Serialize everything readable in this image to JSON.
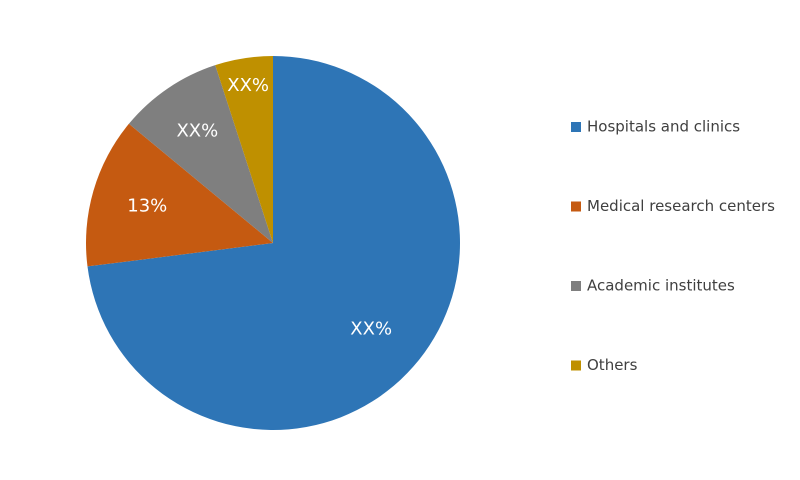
{
  "chart_data": {
    "type": "pie",
    "categories": [
      "Hospitals and clinics",
      "Medical research centers",
      "Academic institutes",
      "Others"
    ],
    "values": [
      73,
      13,
      9,
      5
    ],
    "value_labels": [
      "XX%",
      "13%",
      "XX%",
      "XX%"
    ],
    "colors": [
      "#2e75b6",
      "#c55a11",
      "#7f7f7f",
      "#bf9000"
    ],
    "legend": "right"
  }
}
